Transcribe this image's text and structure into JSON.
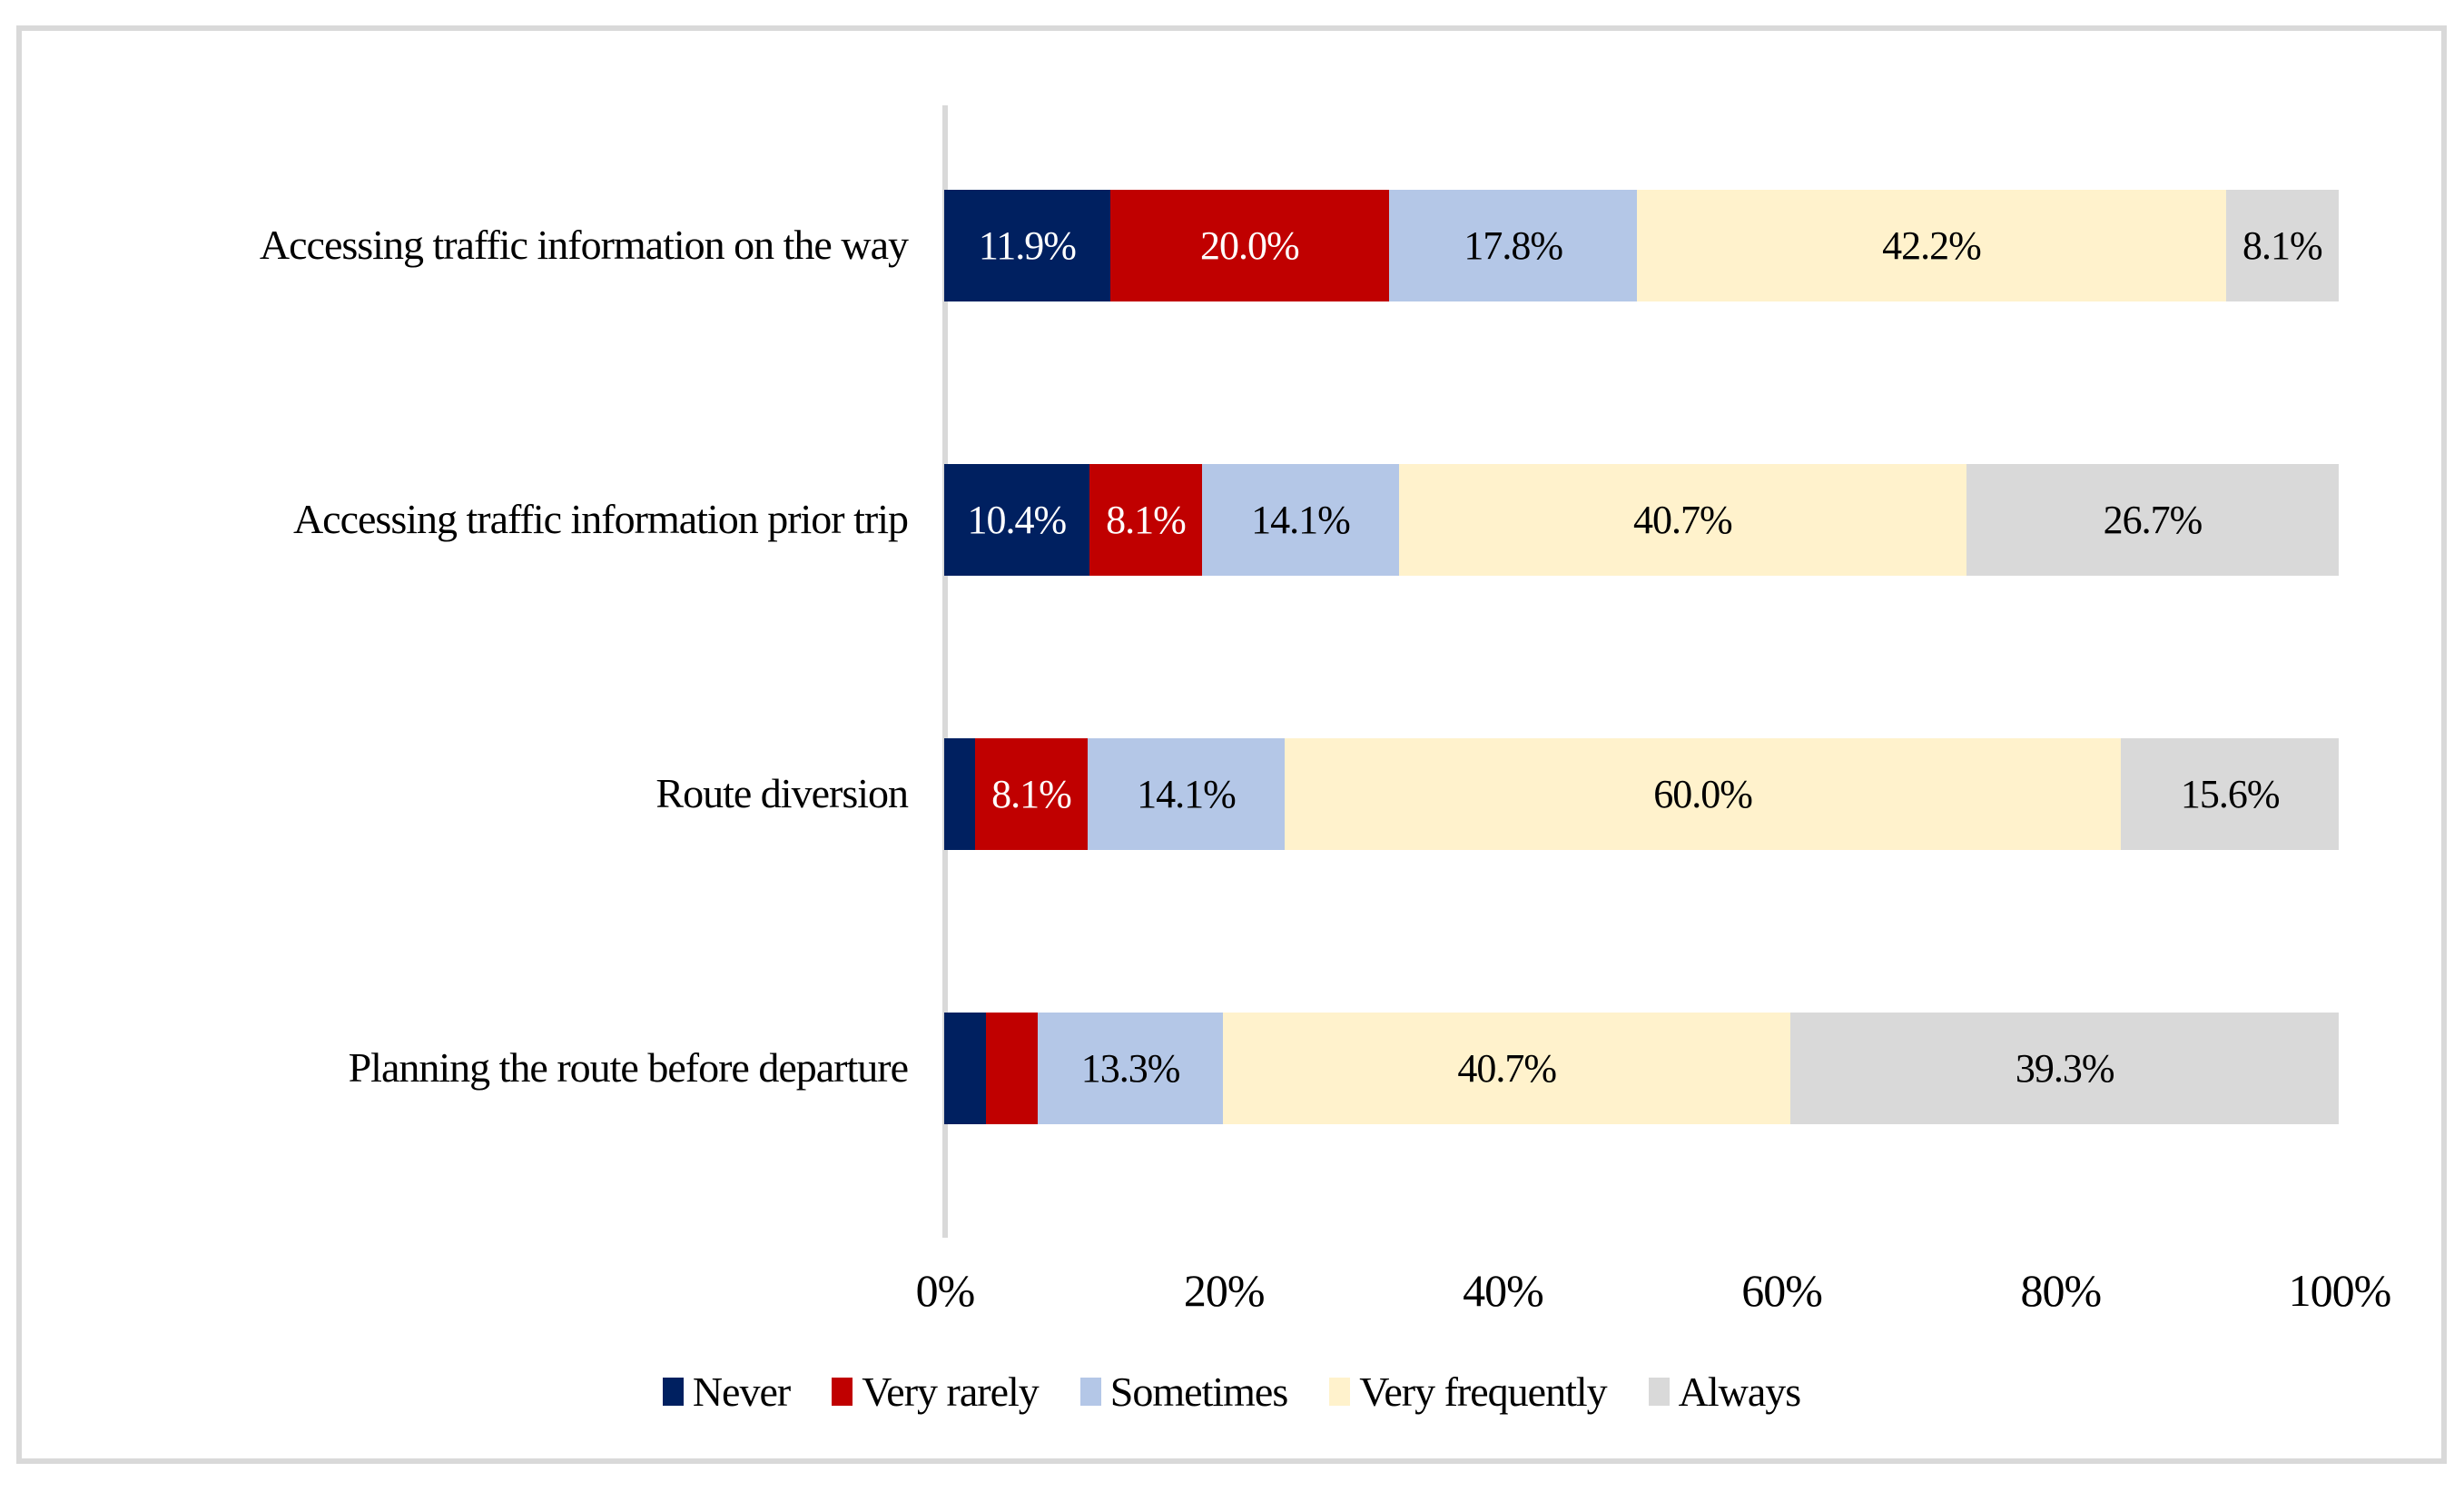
{
  "chart_data": {
    "type": "bar",
    "variant": "horizontal-stacked",
    "title": "",
    "categories": [
      "Accessing traffic information on the way",
      "Accessing traffic information prior trip",
      "Route diversion",
      "Planning the route before departure"
    ],
    "series": [
      {
        "name": "Never",
        "color": "#002060",
        "label_color": "#FFFFFF",
        "values": [
          11.9,
          10.4,
          2.2,
          3.0
        ],
        "labels": [
          "11.9%",
          "10.4%",
          "",
          ""
        ]
      },
      {
        "name": "Very rarely",
        "color": "#C00000",
        "label_color": "#FFFFFF",
        "values": [
          20.0,
          8.1,
          8.1,
          3.7
        ],
        "labels": [
          "20.0%",
          "8.1%",
          "8.1%",
          ""
        ]
      },
      {
        "name": "Sometimes",
        "color": "#B4C7E7",
        "label_color": "#000000",
        "values": [
          17.8,
          14.1,
          14.1,
          13.3
        ],
        "labels": [
          "17.8%",
          "14.1%",
          "14.1%",
          "13.3%"
        ]
      },
      {
        "name": "Very frequently",
        "color": "#FFF2CC",
        "label_color": "#000000",
        "values": [
          42.2,
          40.7,
          60.0,
          40.7
        ],
        "labels": [
          "42.2%",
          "40.7%",
          "60.0%",
          "40.7%"
        ]
      },
      {
        "name": "Always",
        "color": "#D9D9D9",
        "label_color": "#000000",
        "values": [
          8.1,
          26.7,
          15.6,
          39.3
        ],
        "labels": [
          "8.1%",
          "26.7%",
          "15.6%",
          "39.3%"
        ]
      }
    ],
    "xlim": [
      0,
      100
    ],
    "x_ticks": [
      "0%",
      "20%",
      "40%",
      "60%",
      "80%",
      "100%"
    ],
    "grid": false,
    "legend_position": "bottom",
    "axis_line_color": "#D9D9D9",
    "frame_border_color": "#D9D9D9"
  }
}
